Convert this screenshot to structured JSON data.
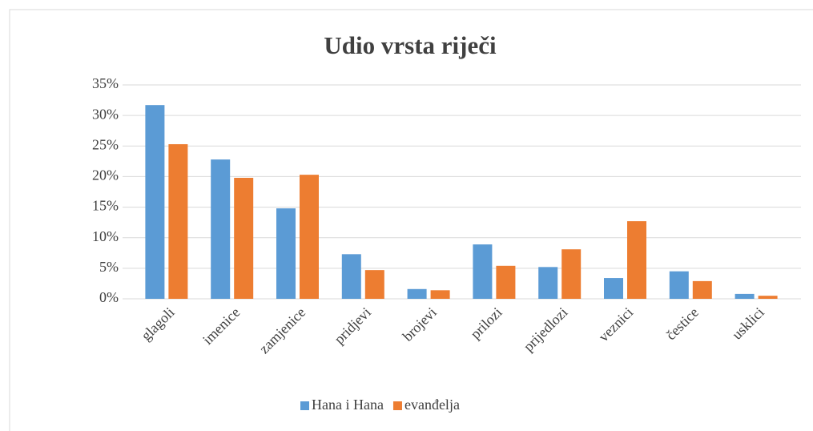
{
  "chart_data": {
    "type": "bar",
    "title": "Udio vrsta riječi",
    "categories": [
      "glagoli",
      "imenice",
      "zamjenice",
      "pridjevi",
      "brojevi",
      "prilozi",
      "prijedlozi",
      "veznici",
      "čestice",
      "usklici"
    ],
    "series": [
      {
        "name": "Hana i Hana",
        "color": "#5b9bd5",
        "values": [
          31.7,
          22.8,
          14.8,
          7.3,
          1.6,
          8.9,
          5.2,
          3.4,
          4.5,
          0.8
        ]
      },
      {
        "name": "evanđelja",
        "color": "#ed7d31",
        "values": [
          25.3,
          19.8,
          20.3,
          4.7,
          1.4,
          5.4,
          8.1,
          12.7,
          2.9,
          0.5
        ]
      }
    ],
    "ylim": [
      0,
      35
    ],
    "yticks": [
      {
        "value": 0,
        "label": "0%"
      },
      {
        "value": 5,
        "label": "5%"
      },
      {
        "value": 10,
        "label": "10%"
      },
      {
        "value": 15,
        "label": "15%"
      },
      {
        "value": 20,
        "label": "20%"
      },
      {
        "value": 25,
        "label": "25%"
      },
      {
        "value": 30,
        "label": "30%"
      },
      {
        "value": 35,
        "label": "35%"
      }
    ],
    "grid": true,
    "legend": "bottom"
  }
}
